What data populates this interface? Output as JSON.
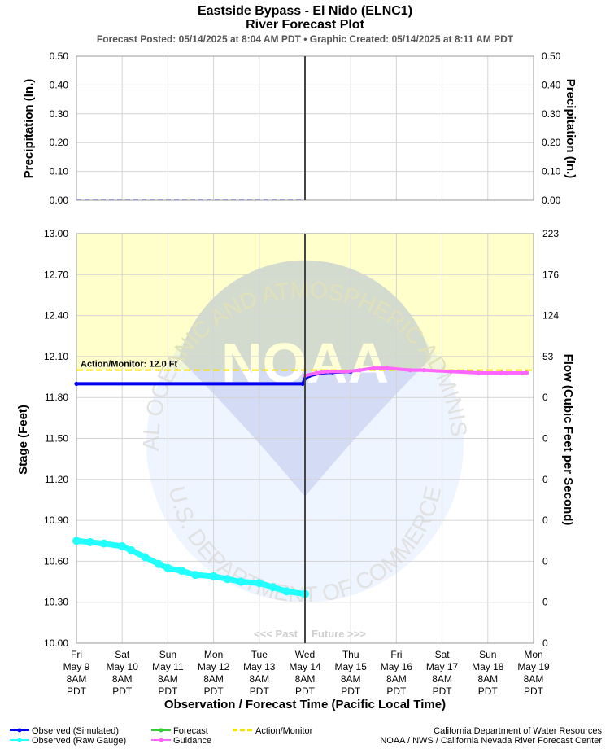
{
  "header": {
    "title": "Eastside Bypass - El Nido (ELNC1)",
    "subtitle": "River Forecast Plot",
    "posted": "Forecast Posted: 05/14/2025 at 8:04 AM PDT  •  Graphic Created: 05/14/2025 at 8:11 AM PDT"
  },
  "precip_panel": {
    "ylabel_left": "Precipitation (In.)",
    "ylabel_right": "Precipitation (In.)",
    "ticks": [
      "0.50",
      "0.40",
      "0.30",
      "0.20",
      "0.10",
      "0.00"
    ],
    "ylim": [
      0,
      0.5
    ]
  },
  "stage_panel": {
    "ylabel_left": "Stage (Feet)",
    "ylabel_right": "Flow (Cubic Feet per Second)",
    "ticks_left": [
      "13.00",
      "12.70",
      "12.40",
      "12.10",
      "11.80",
      "11.50",
      "11.20",
      "10.90",
      "10.60",
      "10.30",
      "10.00"
    ],
    "ticks_right": [
      "223",
      "176",
      "124",
      "53",
      "0",
      "0",
      "0",
      "0",
      "0",
      "0",
      "0"
    ],
    "ylim": [
      10.0,
      13.0
    ],
    "action_label": "Action/Monitor: 12.0 Ft",
    "action_stage": 12.0,
    "past_label": "<<< Past",
    "future_label": "Future >>>"
  },
  "x_axis": {
    "title": "Observation / Forecast Time (Pacific Local Time)",
    "ticks": [
      {
        "day": "Fri",
        "date": "May 9",
        "time": "8AM",
        "tz": "PDT"
      },
      {
        "day": "Sat",
        "date": "May 10",
        "time": "8AM",
        "tz": "PDT"
      },
      {
        "day": "Sun",
        "date": "May 11",
        "time": "8AM",
        "tz": "PDT"
      },
      {
        "day": "Mon",
        "date": "May 12",
        "time": "8AM",
        "tz": "PDT"
      },
      {
        "day": "Tue",
        "date": "May 13",
        "time": "8AM",
        "tz": "PDT"
      },
      {
        "day": "Wed",
        "date": "May 14",
        "time": "8AM",
        "tz": "PDT"
      },
      {
        "day": "Thu",
        "date": "May 15",
        "time": "8AM",
        "tz": "PDT"
      },
      {
        "day": "Fri",
        "date": "May 16",
        "time": "8AM",
        "tz": "PDT"
      },
      {
        "day": "Sat",
        "date": "May 17",
        "time": "8AM",
        "tz": "PDT"
      },
      {
        "day": "Sun",
        "date": "May 18",
        "time": "8AM",
        "tz": "PDT"
      },
      {
        "day": "Mon",
        "date": "May 19",
        "time": "8AM",
        "tz": "PDT"
      }
    ],
    "now": "May 14 8AM"
  },
  "legend": {
    "items": [
      {
        "label": "Observed (Simulated)",
        "color": "#0000ee"
      },
      {
        "label": "Observed (Raw Gauge)",
        "color": "#22ffff"
      },
      {
        "label": "Forecast",
        "color": "#33cc33"
      },
      {
        "label": "Guidance",
        "color": "#ff66ff"
      },
      {
        "label": "Action/Monitor",
        "color": "#f2e600"
      }
    ],
    "credit_line1": "California Department of Water Resources",
    "credit_line2": "NOAA / NWS / California Nevada River Forecast Center"
  },
  "watermark": {
    "ring_text_top": "NATIONAL OCEANIC AND ATMOSPHERIC ADMINISTRATION",
    "ring_text_bottom": "U.S. DEPARTMENT OF COMMERCE",
    "center_text": "NOAA"
  },
  "chart_data": {
    "type": "line",
    "x_unit": "days (0 = May 9 8AM PDT)",
    "x_range": [
      0,
      10
    ],
    "series": [
      {
        "name": "Observed (Simulated)",
        "color": "#0000ee",
        "points": [
          [
            0,
            11.9
          ],
          [
            4.95,
            11.9
          ],
          [
            5.0,
            11.94
          ],
          [
            5.1,
            11.96
          ],
          [
            5.35,
            11.98
          ],
          [
            5.6,
            11.985
          ],
          [
            6.0,
            11.99
          ]
        ]
      },
      {
        "name": "Observed (Raw Gauge)",
        "color": "#22ffff",
        "points": [
          [
            0,
            10.75
          ],
          [
            0.3,
            10.74
          ],
          [
            0.6,
            10.73
          ],
          [
            1.0,
            10.71
          ],
          [
            1.2,
            10.68
          ],
          [
            1.5,
            10.63
          ],
          [
            1.8,
            10.58
          ],
          [
            2.0,
            10.55
          ],
          [
            2.3,
            10.53
          ],
          [
            2.6,
            10.5
          ],
          [
            3.0,
            10.49
          ],
          [
            3.3,
            10.47
          ],
          [
            3.6,
            10.45
          ],
          [
            4.0,
            10.44
          ],
          [
            4.3,
            10.41
          ],
          [
            4.6,
            10.38
          ],
          [
            5.0,
            10.36
          ]
        ]
      },
      {
        "name": "Guidance",
        "color": "#ff66ff",
        "points": [
          [
            5.0,
            11.96
          ],
          [
            5.25,
            11.98
          ],
          [
            5.5,
            11.99
          ],
          [
            5.9,
            11.99
          ],
          [
            6.2,
            12.0
          ],
          [
            6.5,
            12.015
          ],
          [
            6.8,
            12.015
          ],
          [
            7.3,
            12.0
          ],
          [
            7.6,
            12.0
          ],
          [
            8.2,
            11.99
          ],
          [
            8.8,
            11.98
          ],
          [
            9.3,
            11.98
          ],
          [
            9.85,
            11.98
          ]
        ]
      }
    ],
    "precipitation": {
      "values_in": [
        0,
        0,
        0,
        0,
        0,
        0
      ],
      "ylim": [
        0,
        0.5
      ]
    },
    "action_monitor_ft": 12.0,
    "grid": true
  }
}
